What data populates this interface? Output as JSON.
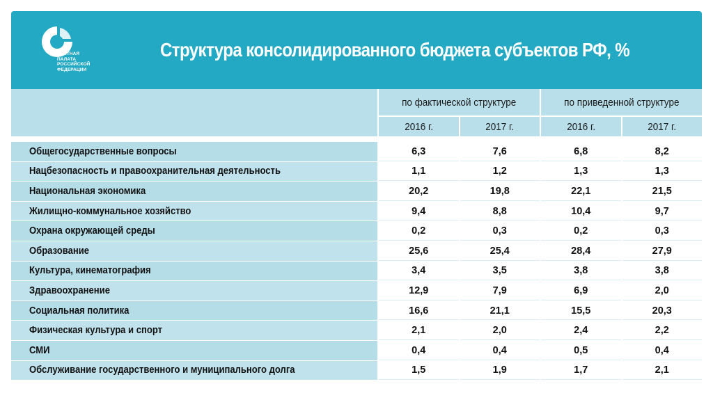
{
  "header": {
    "title": "Структура консолидированного бюджета субъектов РФ, %",
    "logo_text": "СЧЕТНАЯ\nПАЛАТА\nРОССИЙСКОЙ\nФЕДЕРАЦИИ",
    "accent_color": "#24a9c4",
    "row_color": "#b9dfea"
  },
  "chart_data": {
    "type": "table",
    "title": "Структура консолидированного бюджета субъектов РФ, %",
    "groups": [
      "по фактической структуре",
      "по приведенной структуре"
    ],
    "years": [
      "2016 г.",
      "2017 г.",
      "2016 г.",
      "2017 г."
    ],
    "rows": [
      {
        "label": "Общегосударственные вопросы",
        "values": [
          "6,3",
          "7,6",
          "6,8",
          "8,2"
        ]
      },
      {
        "label": "Нацбезопасность и правоохранительная деятельность",
        "values": [
          "1,1",
          "1,2",
          "1,3",
          "1,3"
        ]
      },
      {
        "label": "Национальная экономика",
        "values": [
          "20,2",
          "19,8",
          "22,1",
          "21,5"
        ]
      },
      {
        "label": "Жилищно-коммунальное хозяйство",
        "values": [
          "9,4",
          "8,8",
          "10,4",
          "9,7"
        ]
      },
      {
        "label": "Охрана окружающей среды",
        "values": [
          "0,2",
          "0,3",
          "0,2",
          "0,3"
        ]
      },
      {
        "label": "Образование",
        "values": [
          "25,6",
          "25,4",
          "28,4",
          "27,9"
        ]
      },
      {
        "label": "Культура, кинематография",
        "values": [
          "3,4",
          "3,5",
          "3,8",
          "3,8"
        ]
      },
      {
        "label": "Здравоохранение",
        "values": [
          "12,9",
          "7,9",
          "6,9",
          "2,0"
        ]
      },
      {
        "label": "Социальная политика",
        "values": [
          "16,6",
          "21,1",
          "15,5",
          "20,3"
        ]
      },
      {
        "label": "Физическая культура и спорт",
        "values": [
          "2,1",
          "2,0",
          "2,4",
          "2,2"
        ]
      },
      {
        "label": "СМИ",
        "values": [
          "0,4",
          "0,4",
          "0,5",
          "0,4"
        ]
      },
      {
        "label": "Обслуживание государственного и муниципального долга",
        "values": [
          "1,5",
          "1,9",
          "1,7",
          "2,1"
        ]
      }
    ]
  }
}
